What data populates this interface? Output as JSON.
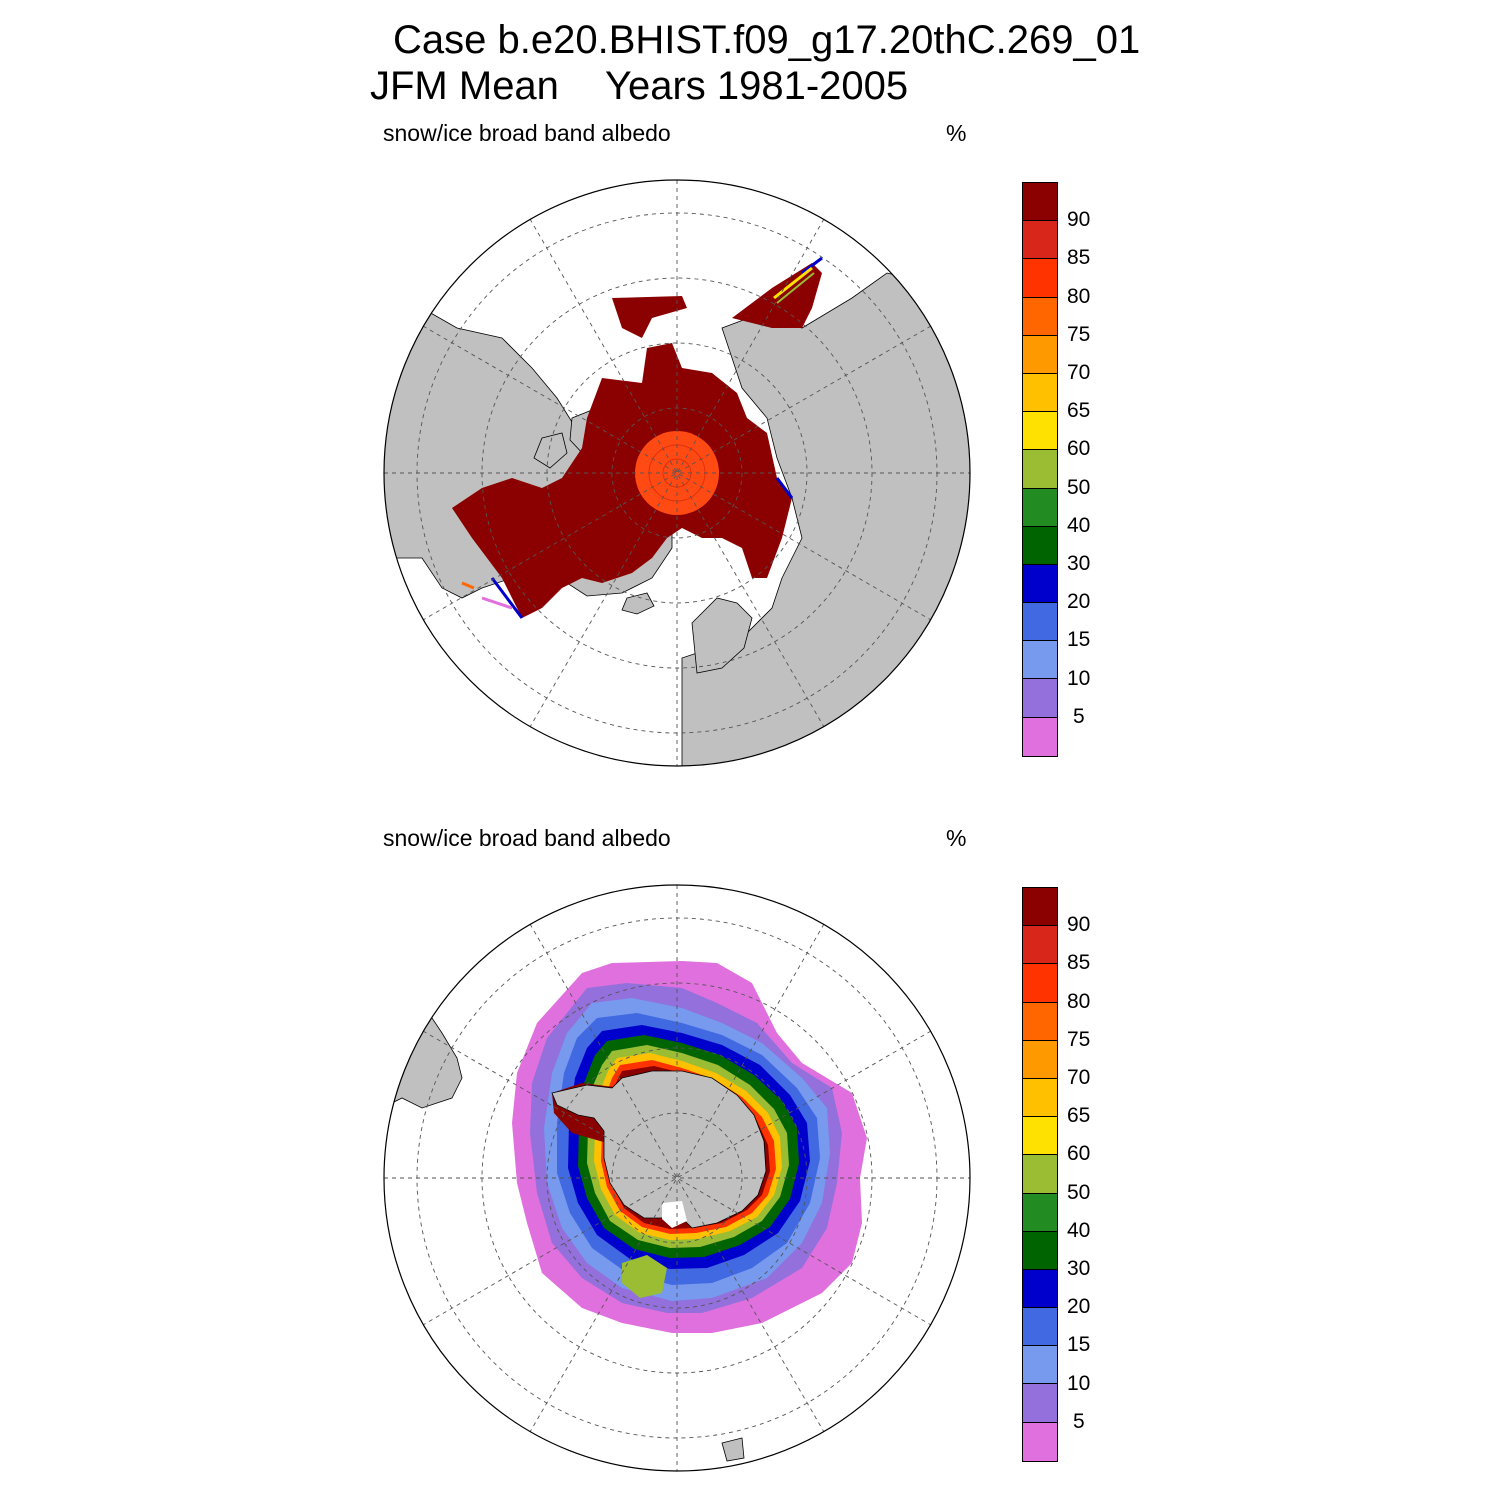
{
  "figure": {
    "title_line1": "Case b.e20.BHIST.f09_g17.20thC.269_01",
    "title_season": "JFM Mean",
    "title_years": "Years 1981-2005"
  },
  "panels": [
    {
      "hemisphere": "north",
      "variable_label": "snow/ice broad band albedo",
      "units": "%",
      "projection": "polar stereographic"
    },
    {
      "hemisphere": "south",
      "variable_label": "snow/ice broad band albedo",
      "units": "%",
      "projection": "polar stereographic"
    }
  ],
  "colorbar": {
    "labels": [
      "90",
      "85",
      "80",
      "75",
      "70",
      "65",
      "60",
      "50",
      "40",
      "30",
      "20",
      "15",
      "10",
      "5"
    ],
    "colors": [
      "#8b0000",
      "#d9261a",
      "#ff3300",
      "#ff6600",
      "#ff9900",
      "#ffc000",
      "#ffe100",
      "#9abd34",
      "#228b22",
      "#006400",
      "#0000cd",
      "#4169e1",
      "#7799ee",
      "#9370db",
      "#e070dd"
    ]
  },
  "map_colors": {
    "land": "#c0c0c0",
    "ocean": "#ffffff",
    "grid_line": "#555555"
  }
}
